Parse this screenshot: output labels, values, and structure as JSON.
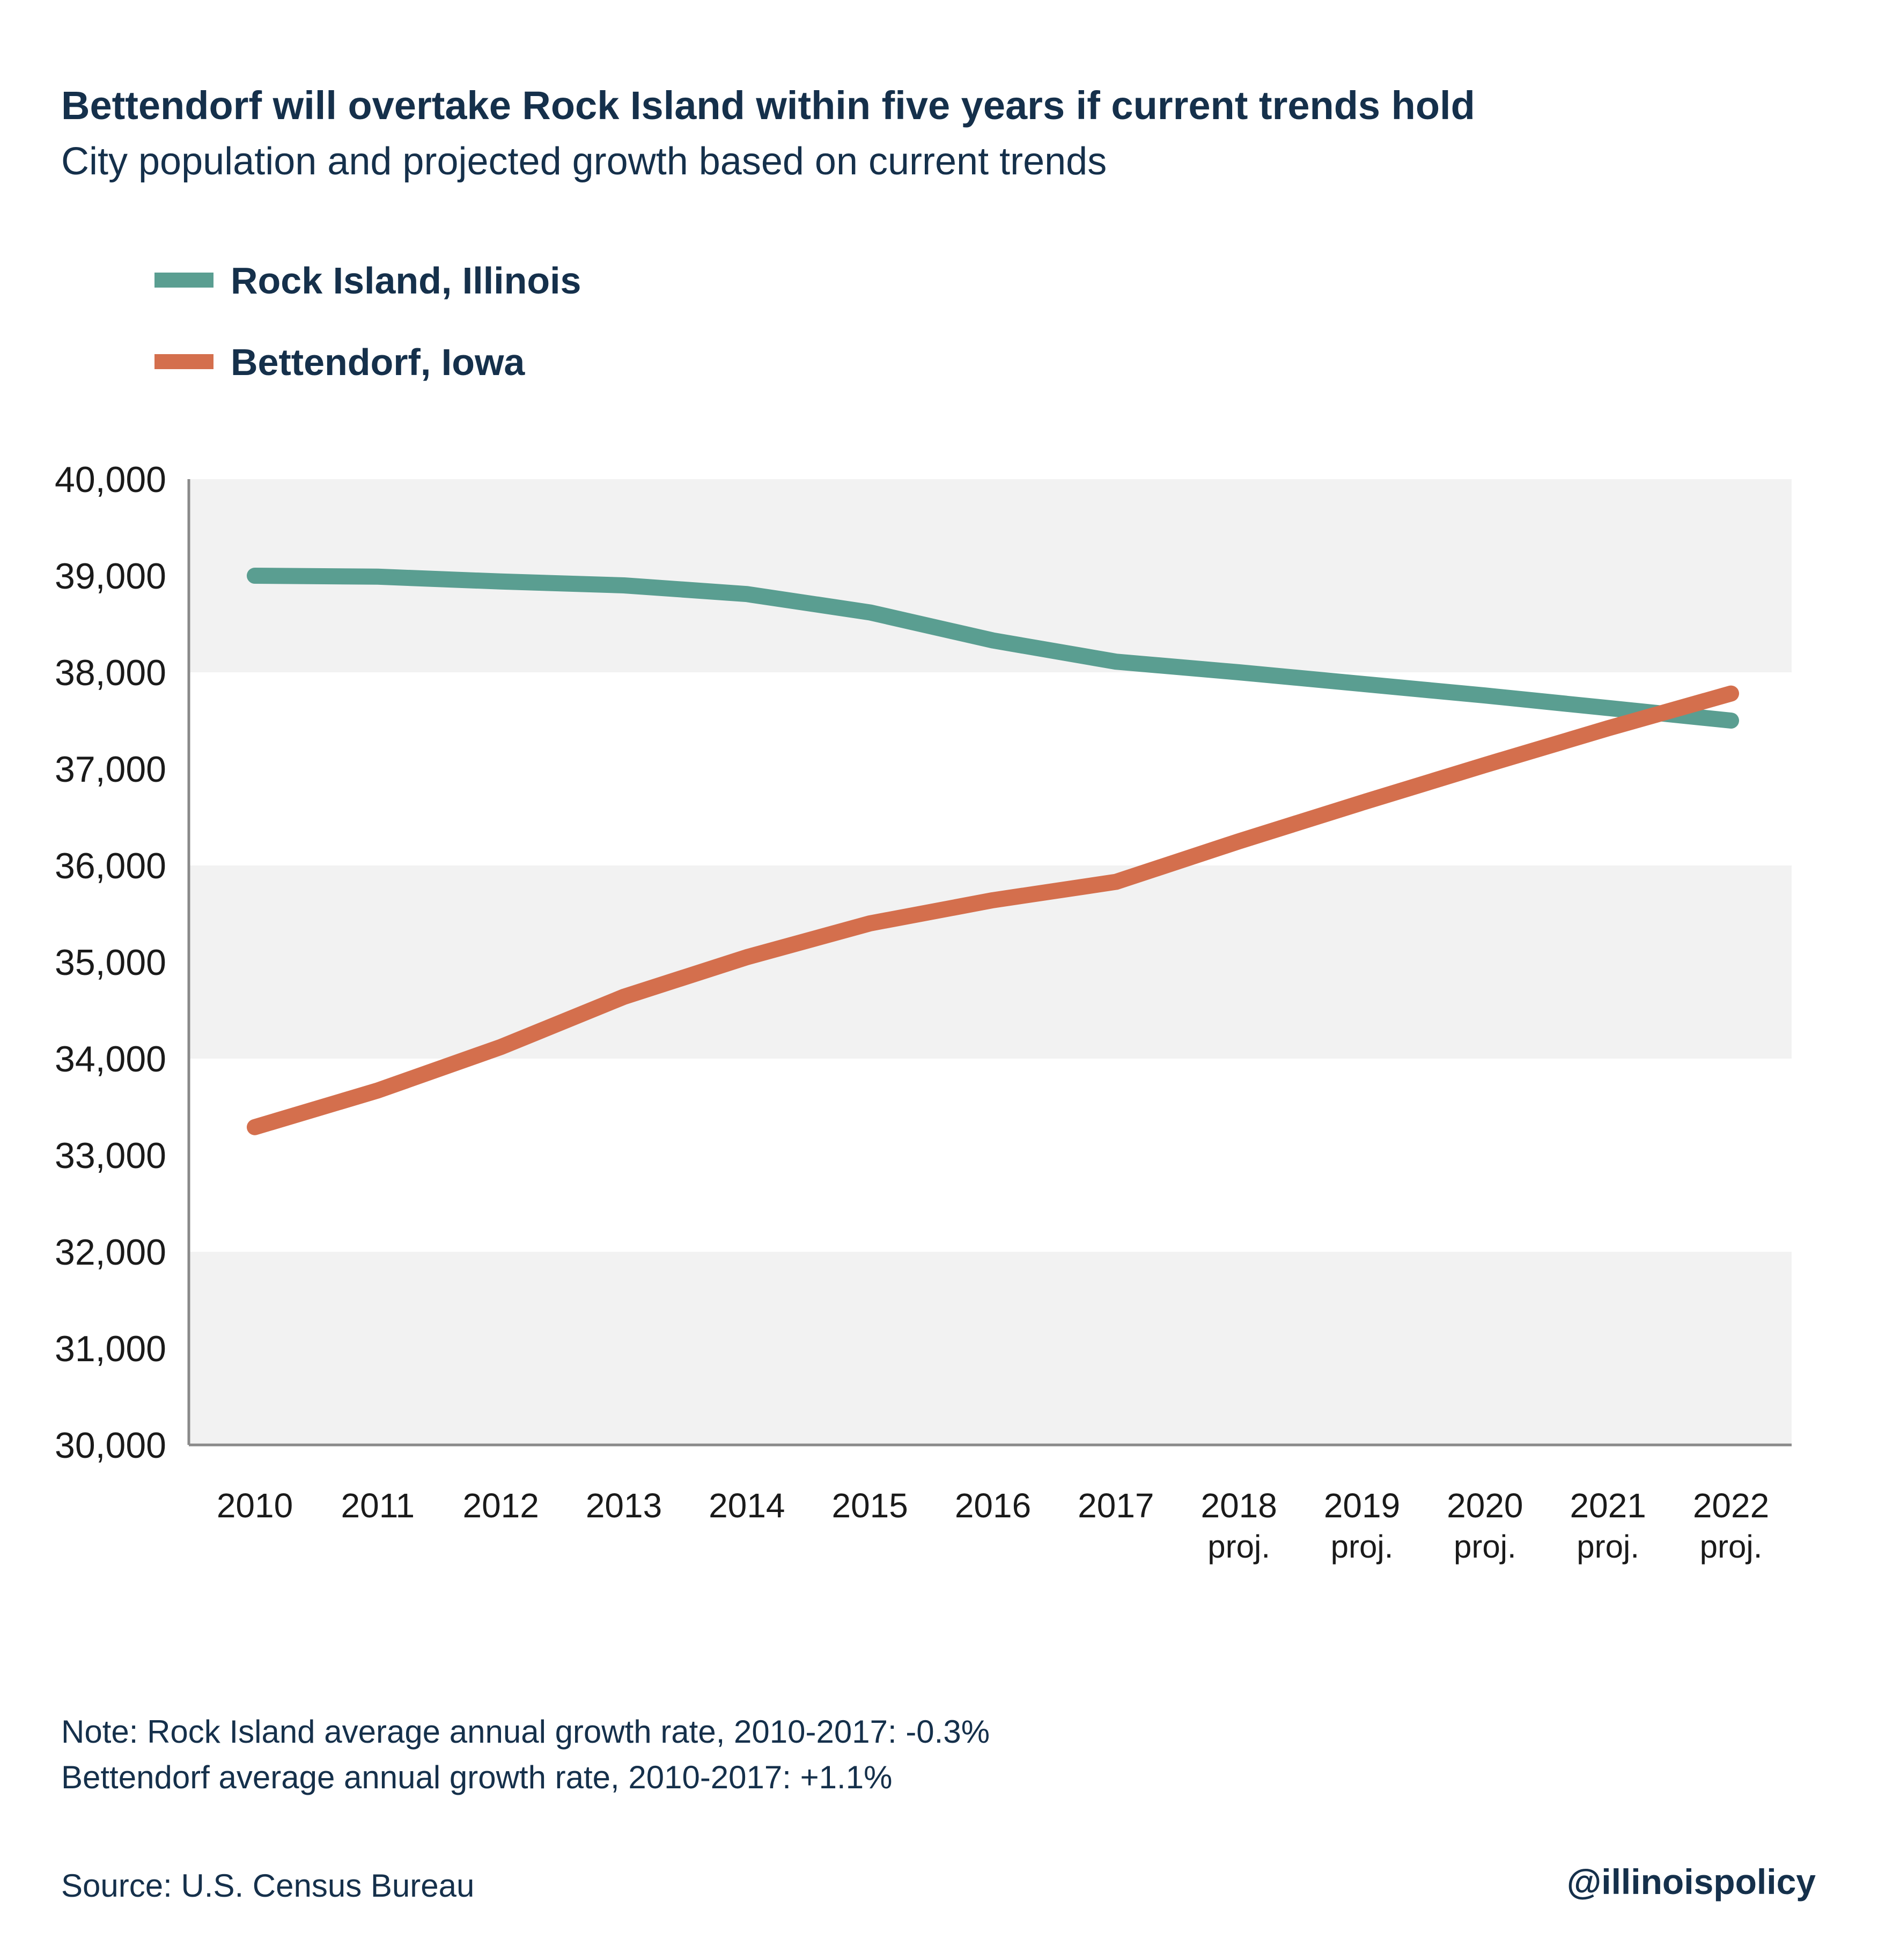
{
  "header": {
    "title": "Bettendorf will overtake Rock Island within five years if current trends hold",
    "subtitle": "City population and projected growth based on current trends"
  },
  "legend": {
    "placement": "top-left",
    "items": [
      {
        "label": "Rock Island, Illinois",
        "color": "#5a9e91"
      },
      {
        "label": "Bettendorf, Iowa",
        "color": "#d46f4d"
      }
    ]
  },
  "chart_data": {
    "type": "line",
    "title": "Bettendorf will overtake Rock Island within five years if current trends hold",
    "subtitle": "City population and projected growth based on current trends",
    "xlabel": "",
    "ylabel": "",
    "ylim": [
      30000,
      40000
    ],
    "y_ticks": [
      30000,
      31000,
      32000,
      33000,
      34000,
      35000,
      36000,
      37000,
      38000,
      39000,
      40000
    ],
    "y_tick_labels": [
      "30,000",
      "31,000",
      "32,000",
      "33,000",
      "34,000",
      "35,000",
      "36,000",
      "37,000",
      "38,000",
      "39,000",
      "40,000"
    ],
    "grid": "alternating horizontal bands",
    "categories": [
      "2010",
      "2011",
      "2012",
      "2013",
      "2014",
      "2015",
      "2016",
      "2017",
      "2018",
      "2019",
      "2020",
      "2021",
      "2022"
    ],
    "category_sublabels": [
      "",
      "",
      "",
      "",
      "",
      "",
      "",
      "",
      "proj.",
      "proj.",
      "proj.",
      "proj.",
      "proj."
    ],
    "series": [
      {
        "name": "Rock Island, Illinois",
        "color": "#5a9e91",
        "values": [
          39000,
          38990,
          38940,
          38900,
          38810,
          38620,
          38330,
          38110,
          38000,
          37880,
          37760,
          37630,
          37500
        ]
      },
      {
        "name": "Bettendorf, Iowa",
        "color": "#d46f4d",
        "values": [
          33290,
          33670,
          34120,
          34640,
          35050,
          35400,
          35640,
          35830,
          36250,
          36650,
          37040,
          37420,
          37780
        ]
      }
    ]
  },
  "footer": {
    "note_line1": "Note: Rock Island average annual growth rate, 2010-2017: -0.3%",
    "note_line2": "Bettendorf average annual growth rate, 2010-2017: +1.1%",
    "source": "Source: U.S. Census Bureau",
    "handle": "@illinoispolicy"
  },
  "colors": {
    "title": "#15304b",
    "axis_text": "#1a1a1a",
    "band": "#f2f2f2",
    "axis_line": "#8a8a8a"
  }
}
